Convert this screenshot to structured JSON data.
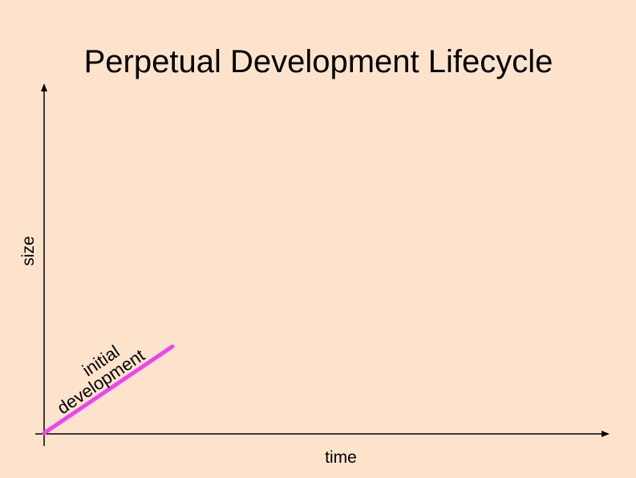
{
  "title": "Perpetual Development Lifecycle",
  "axes": {
    "y_label": "size",
    "x_label": "time"
  },
  "annotation": {
    "lines": [
      "initial",
      "development"
    ]
  }
}
